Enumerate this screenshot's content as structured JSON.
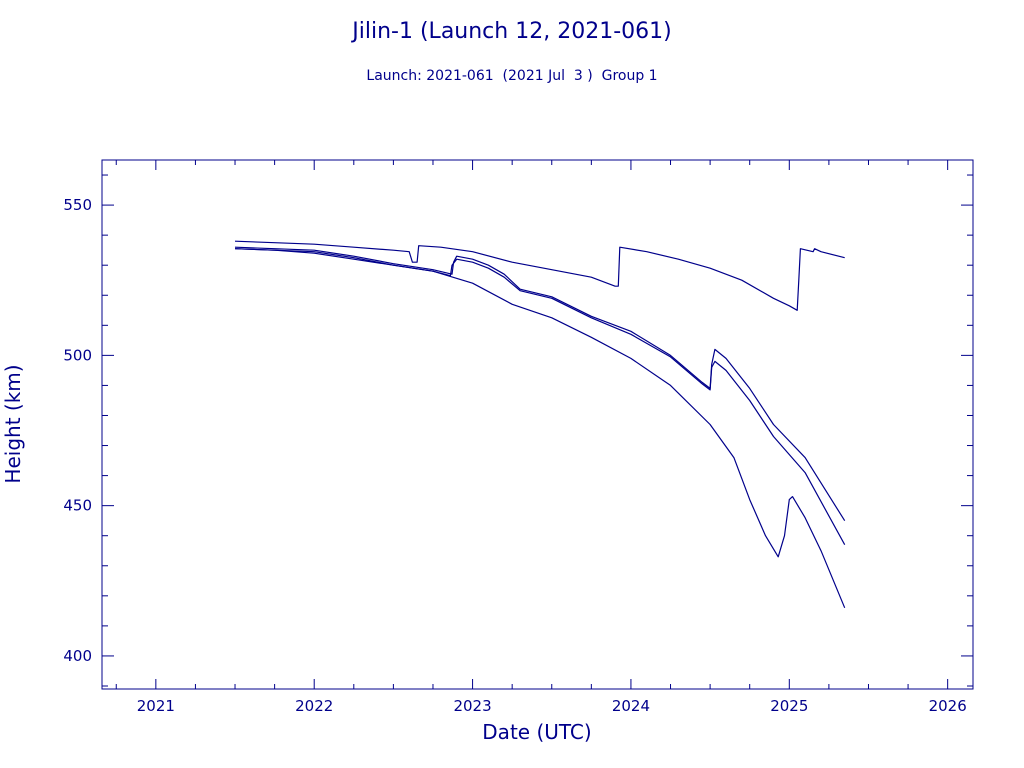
{
  "chart_data": {
    "type": "line",
    "title": "Jilin-1 (Launch 12, 2021-061)",
    "subtitle": "Launch: 2021-061  (2021 Jul  3 )  Group 1",
    "xlabel": "Date (UTC)",
    "ylabel": "Height (km)",
    "xlim": [
      2020.66,
      2026.16
    ],
    "ylim": [
      389,
      565
    ],
    "x_ticks": [
      "2021",
      "2022",
      "2023",
      "2024",
      "2025",
      "2026"
    ],
    "y_ticks": [
      "400",
      "450",
      "500",
      "550"
    ],
    "grid": false,
    "colors": {
      "axes": "#00008b",
      "series": "#00008b",
      "background": "#ffffff"
    },
    "series": [
      {
        "x": [
          2021.5,
          2021.75,
          2022.0,
          2022.25,
          2022.5,
          2022.6,
          2022.62,
          2022.65,
          2022.66,
          2022.8,
          2023.0,
          2023.25,
          2023.5,
          2023.75,
          2023.9,
          2023.92,
          2023.93,
          2024.1,
          2024.3,
          2024.5,
          2024.7,
          2024.9,
          2025.0,
          2025.05,
          2025.06,
          2025.07,
          2025.15,
          2025.16,
          2025.2,
          2025.35
        ],
        "y": [
          538,
          537.5,
          537,
          536,
          535,
          534.5,
          531,
          531,
          536.5,
          536,
          534.5,
          531,
          528.5,
          526,
          523,
          523,
          536,
          534.5,
          532,
          529,
          525,
          519,
          516.5,
          515,
          525,
          535.5,
          534.5,
          535.5,
          534.5,
          532.5
        ]
      },
      {
        "x": [
          2021.5,
          2021.75,
          2022.0,
          2022.25,
          2022.5,
          2022.75,
          2022.87,
          2022.88,
          2022.9,
          2023.0,
          2023.1,
          2023.2,
          2023.3,
          2023.5,
          2023.75,
          2024.0,
          2024.25,
          2024.45,
          2024.5,
          2024.51,
          2024.53,
          2024.6,
          2024.75,
          2024.9,
          2025.1,
          2025.35
        ],
        "y": [
          536,
          535.5,
          535,
          533,
          530.5,
          528.5,
          527,
          531,
          533,
          532,
          530,
          527,
          522,
          519.5,
          513,
          508,
          500,
          491,
          489,
          497,
          502,
          499,
          489,
          477,
          466,
          445
        ]
      },
      {
        "x": [
          2021.5,
          2021.75,
          2022.0,
          2022.25,
          2022.5,
          2022.75,
          2022.86,
          2022.87,
          2022.9,
          2023.0,
          2023.1,
          2023.2,
          2023.3,
          2023.5,
          2023.75,
          2024.0,
          2024.25,
          2024.45,
          2024.5,
          2024.51,
          2024.53,
          2024.6,
          2024.75,
          2024.9,
          2025.1,
          2025.35
        ],
        "y": [
          535.5,
          535,
          534.5,
          532.5,
          530,
          528,
          526.5,
          530,
          532,
          531,
          529,
          526,
          521.5,
          519,
          512.5,
          507,
          499.5,
          490.5,
          488.5,
          496,
          498,
          495,
          485,
          473,
          461,
          437
        ]
      },
      {
        "x": [
          2021.5,
          2021.75,
          2022.0,
          2022.25,
          2022.5,
          2022.75,
          2023.0,
          2023.25,
          2023.5,
          2023.75,
          2024.0,
          2024.25,
          2024.5,
          2024.65,
          2024.75,
          2024.85,
          2024.93,
          2024.97,
          2025.0,
          2025.02,
          2025.1,
          2025.2,
          2025.35
        ],
        "y": [
          535.5,
          535,
          534,
          532,
          530,
          528,
          524,
          517,
          512.5,
          506,
          499,
          490,
          477,
          466,
          452,
          440,
          433,
          440,
          452,
          453,
          446,
          435,
          416
        ]
      }
    ]
  }
}
